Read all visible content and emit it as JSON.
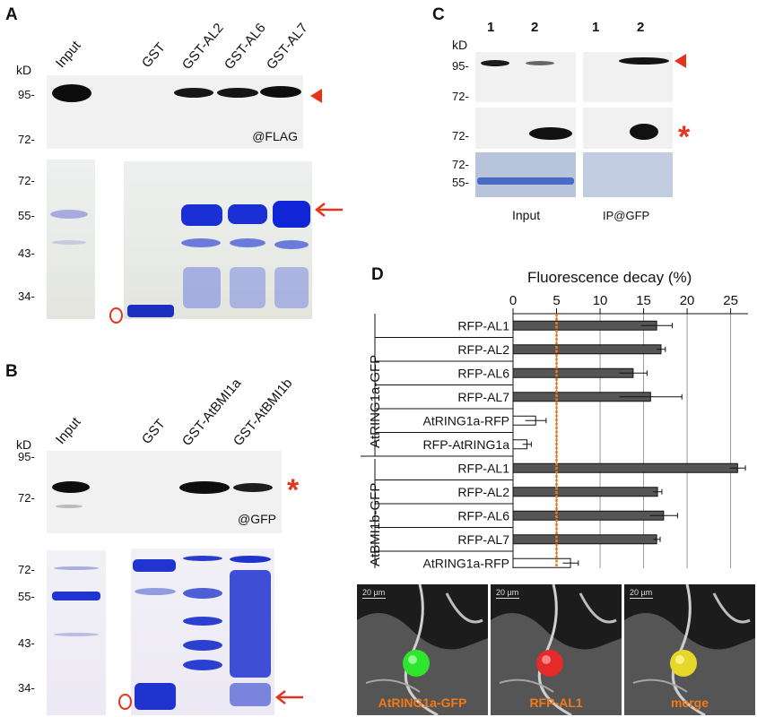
{
  "panel_a": {
    "label": "A",
    "lanes": [
      "Input",
      "GST",
      "GST-AL2",
      "GST-AL6",
      "GST-AL7"
    ],
    "kd": "kD",
    "blot_markers": [
      "95-",
      "72-"
    ],
    "blot_antibody": "@FLAG",
    "gel_markers": [
      "72-",
      "55-",
      "43-",
      "34-"
    ]
  },
  "panel_b": {
    "label": "B",
    "lanes": [
      "Input",
      "GST",
      "GST-AtBMI1a",
      "GST-AtBMI1b"
    ],
    "kd": "kD",
    "blot_markers": [
      "95-",
      "72-"
    ],
    "blot_antibody": "@GFP",
    "gel_markers": [
      "72-",
      "55-",
      "43-",
      "34-"
    ]
  },
  "panel_c": {
    "label": "C",
    "kd": "kD",
    "lane_numbers": [
      "1",
      "2",
      "1",
      "2"
    ],
    "markers_top": [
      "95-",
      "72-"
    ],
    "markers_mid": [
      "72-"
    ],
    "markers_bot": [
      "72-",
      "55-"
    ],
    "group_labels": [
      "Input",
      "IP@GFP"
    ]
  },
  "panel_d": {
    "label": "D",
    "group_labels": [
      "AtRING1a-GFP",
      "AtBMI1b-GFP"
    ],
    "micrograph_captions": [
      "AtRING1a-GFP",
      "RFP-AL1",
      "merge"
    ],
    "scale_label": "20 µm",
    "colors": {
      "filled_bar": "#555555",
      "open_bar": "#ffffff",
      "threshold": "#f07a18",
      "caption": "#f07a18"
    }
  },
  "chart_data": {
    "type": "bar",
    "orientation": "horizontal",
    "title": "Fluorescence decay (%)",
    "xlim": [
      0,
      27
    ],
    "xticks": [
      0,
      5,
      10,
      15,
      20,
      25
    ],
    "threshold": 5,
    "categories": [
      "RFP-AL1",
      "RFP-AL2",
      "RFP-AL6",
      "RFP-AL7",
      "AtRING1a-RFP",
      "RFP-AtRING1a",
      "RFP-AL1",
      "RFP-AL2",
      "RFP-AL6",
      "RFP-AL7",
      "AtRING1a-RFP"
    ],
    "groups": [
      "AtRING1a-GFP",
      "AtRING1a-GFP",
      "AtRING1a-GFP",
      "AtRING1a-GFP",
      "AtRING1a-GFP",
      "AtRING1a-GFP",
      "AtBMI1b-GFP",
      "AtBMI1b-GFP",
      "AtBMI1b-GFP",
      "AtBMI1b-GFP",
      "AtBMI1b-GFP"
    ],
    "values": [
      16.5,
      17.0,
      13.8,
      15.8,
      2.6,
      1.6,
      25.8,
      16.6,
      17.3,
      16.5,
      6.6
    ],
    "errors": [
      1.8,
      0.5,
      1.6,
      3.6,
      1.2,
      0.5,
      0.9,
      0.5,
      1.6,
      0.4,
      0.9
    ],
    "filled": [
      true,
      true,
      true,
      true,
      false,
      false,
      true,
      true,
      true,
      true,
      false
    ],
    "grid": true
  }
}
